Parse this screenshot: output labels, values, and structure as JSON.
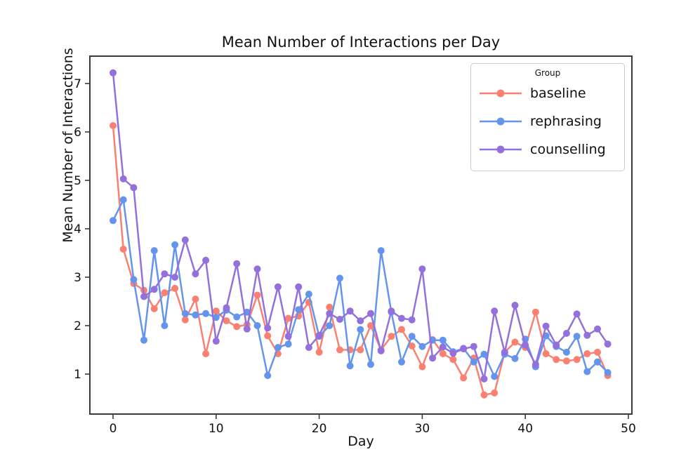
{
  "chart_data": {
    "type": "line",
    "title": "Mean Number of Interactions per Day",
    "xlabel": "Day",
    "ylabel": "Mean Number of Interactions",
    "legend_title": "Group",
    "legend_position": "upper right",
    "grid": false,
    "x_ticks": [
      0,
      10,
      20,
      30,
      40,
      50
    ],
    "y_ticks": [
      1,
      2,
      3,
      4,
      5,
      6,
      7
    ],
    "xlim": [
      -2.25,
      50.3
    ],
    "ylim": [
      0.17,
      7.57
    ],
    "x": [
      0,
      1,
      2,
      3,
      4,
      5,
      6,
      7,
      8,
      9,
      10,
      11,
      12,
      13,
      14,
      15,
      16,
      17,
      18,
      19,
      20,
      21,
      22,
      23,
      24,
      25,
      26,
      27,
      28,
      29,
      30,
      31,
      32,
      33,
      34,
      35,
      36,
      37,
      38,
      39,
      40,
      41,
      42,
      43,
      44,
      45,
      46,
      47,
      48
    ],
    "series": [
      {
        "name": "baseline",
        "color": "#FA8072",
        "values": [
          6.13,
          3.58,
          2.87,
          2.73,
          2.35,
          2.68,
          2.77,
          2.12,
          2.55,
          1.42,
          2.3,
          2.1,
          1.98,
          2.02,
          2.63,
          1.79,
          1.42,
          2.15,
          2.2,
          2.48,
          1.45,
          2.38,
          1.5,
          1.5,
          1.5,
          2.0,
          1.5,
          1.78,
          1.92,
          1.58,
          1.15,
          1.71,
          1.42,
          1.3,
          0.92,
          1.33,
          0.57,
          0.61,
          1.45,
          1.66,
          1.55,
          2.28,
          1.42,
          1.3,
          1.27,
          1.3,
          1.42,
          1.45,
          0.97
        ]
      },
      {
        "name": "rephrasing",
        "color": "#6495ED",
        "values": [
          4.17,
          4.6,
          2.95,
          1.7,
          3.55,
          2.0,
          3.67,
          2.25,
          2.22,
          2.25,
          2.17,
          2.32,
          2.18,
          2.28,
          2.0,
          0.97,
          1.55,
          1.62,
          2.33,
          2.65,
          1.78,
          2.0,
          2.98,
          1.17,
          1.92,
          1.2,
          3.55,
          2.28,
          1.25,
          1.78,
          1.57,
          1.7,
          1.7,
          1.46,
          1.53,
          1.25,
          1.41,
          0.95,
          1.41,
          1.32,
          1.72,
          1.15,
          1.79,
          1.57,
          1.45,
          1.78,
          1.05,
          1.25,
          1.03
        ]
      },
      {
        "name": "counselling",
        "color": "#9370DB",
        "values": [
          7.22,
          5.03,
          4.85,
          2.6,
          2.75,
          3.07,
          3.0,
          3.77,
          3.07,
          3.35,
          1.68,
          2.37,
          3.28,
          1.93,
          3.17,
          1.95,
          2.8,
          1.78,
          2.8,
          1.55,
          1.8,
          2.25,
          2.13,
          2.3,
          2.1,
          2.25,
          1.48,
          2.3,
          2.15,
          2.12,
          3.17,
          1.33,
          1.56,
          1.43,
          1.52,
          1.57,
          0.9,
          2.3,
          1.45,
          2.42,
          1.6,
          1.2,
          1.99,
          1.6,
          1.84,
          2.24,
          1.8,
          1.93,
          1.62
        ]
      }
    ]
  }
}
